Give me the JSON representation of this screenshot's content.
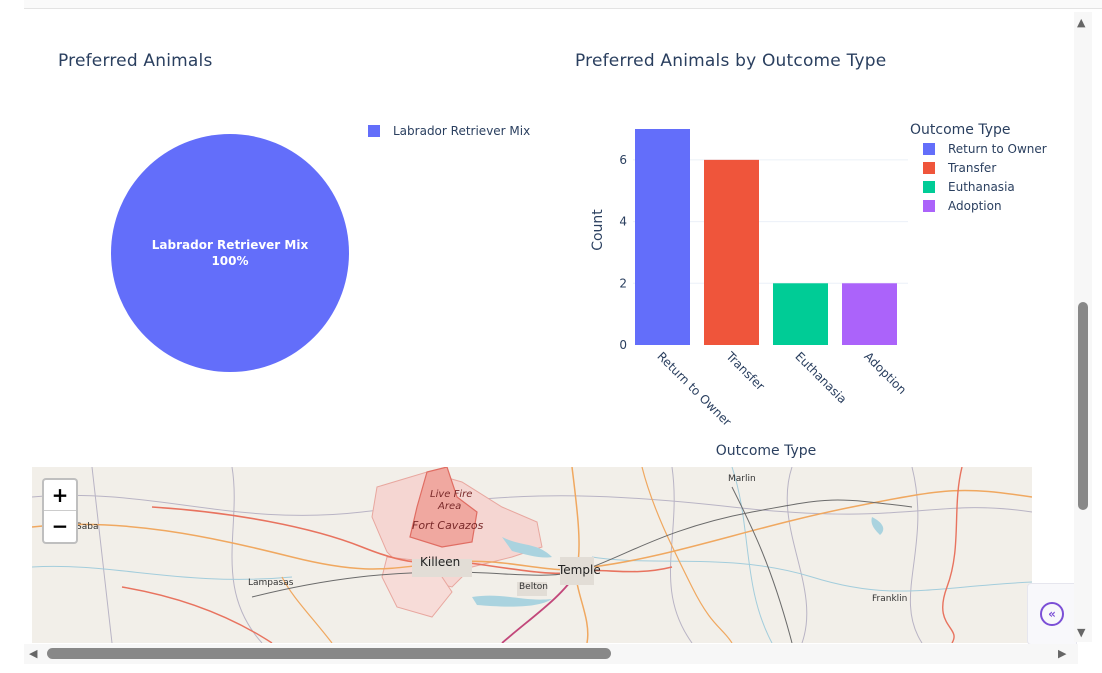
{
  "pie_panel": {
    "title": "Preferred Animals",
    "slice_label": "Labrador Retriever Mix",
    "slice_percent": "100%",
    "legend_label": "Labrador Retriever Mix",
    "color": "#636efa"
  },
  "bar_panel": {
    "title": "Preferred Animals by Outcome Type",
    "legend_title": "Outcome Type",
    "legend": [
      {
        "label": "Return to Owner",
        "color": "#636efa"
      },
      {
        "label": "Transfer",
        "color": "#ef553b"
      },
      {
        "label": "Euthanasia",
        "color": "#00cc96"
      },
      {
        "label": "Adoption",
        "color": "#ab63fa"
      }
    ]
  },
  "chart_data": [
    {
      "type": "pie",
      "title": "Preferred Animals",
      "labels": [
        "Labrador Retriever Mix"
      ],
      "values": [
        100
      ],
      "percent_labels": [
        "100%"
      ]
    },
    {
      "type": "bar",
      "title": "Preferred Animals by Outcome Type",
      "categories": [
        "Return to Owner",
        "Transfer",
        "Euthanasia",
        "Adoption"
      ],
      "values": [
        7,
        6,
        2,
        2
      ],
      "colors": [
        "#636efa",
        "#ef553b",
        "#00cc96",
        "#ab63fa"
      ],
      "xlabel": "Outcome Type",
      "ylabel": "Count",
      "ylim": [
        0,
        7
      ],
      "yticks": [
        0,
        2,
        4,
        6
      ],
      "grid": true,
      "legend_title": "Outcome Type",
      "legend_position": "right"
    }
  ],
  "map": {
    "zoom_in": "+",
    "zoom_out": "−",
    "labels": {
      "marlin": "Marlin",
      "saba": "Saba",
      "live_fire": "Live Fire",
      "area": "Area",
      "fort": "Fort Cavazos",
      "killeen": "Killeen",
      "temple": "Temple",
      "lampasas": "Lampasas",
      "belton": "Belton",
      "franklin": "Franklin"
    }
  },
  "scroll": {
    "up": "▲",
    "down": "▼",
    "left": "◀",
    "right": "▶"
  },
  "collapse_button": {
    "glyph": "«"
  }
}
